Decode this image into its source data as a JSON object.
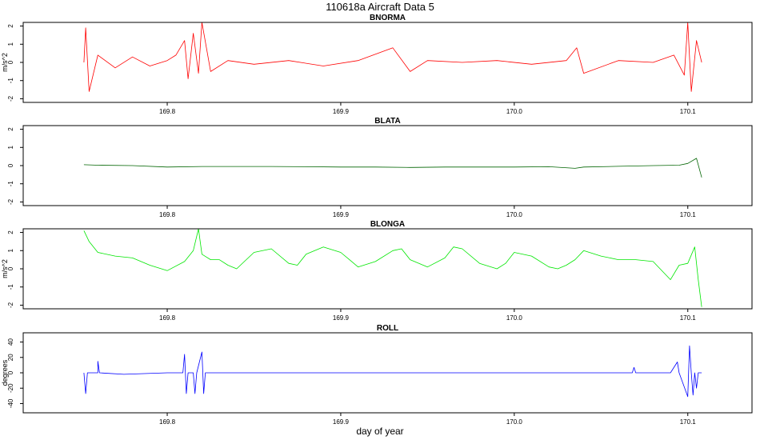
{
  "page": {
    "title": "110618a   Aircraft Data 5",
    "xlabel": "day of year"
  },
  "chart_data": [
    {
      "type": "line",
      "title": "BNORMA",
      "ylabel": "m/s^2",
      "color": "#ff0000",
      "xlim": [
        169.717,
        170.137
      ],
      "ylim": [
        -2.2,
        2.2
      ],
      "xticks": [
        169.8,
        169.9,
        170.0,
        170.1
      ],
      "xtick_labels": [
        "169.8",
        "169.9",
        "170.0",
        "170.1"
      ],
      "yticks": [
        -2,
        -1,
        0,
        1,
        2
      ],
      "ytick_labels": [
        "-2",
        "-1",
        "0",
        "1",
        "2"
      ],
      "x": [
        169.752,
        169.753,
        169.755,
        169.76,
        169.77,
        169.78,
        169.79,
        169.8,
        169.805,
        169.81,
        169.812,
        169.815,
        169.818,
        169.82,
        169.825,
        169.835,
        169.85,
        169.87,
        169.89,
        169.91,
        169.93,
        169.94,
        169.95,
        169.97,
        169.99,
        170.01,
        170.03,
        170.036,
        170.04,
        170.06,
        170.08,
        170.092,
        170.098,
        170.1,
        170.102,
        170.105,
        170.108
      ],
      "y": [
        0,
        1.9,
        -1.6,
        0.4,
        -0.3,
        0.3,
        -0.2,
        0.1,
        0.4,
        1.2,
        -0.9,
        1.6,
        -0.6,
        2.2,
        -0.5,
        0.1,
        -0.1,
        0.1,
        -0.2,
        0.1,
        0.8,
        -0.5,
        0.1,
        0,
        0.1,
        -0.1,
        0.1,
        0.8,
        -0.6,
        0.1,
        0,
        0.4,
        -0.7,
        2.2,
        -1.6,
        1.2,
        0
      ]
    },
    {
      "type": "line",
      "title": "BLATA",
      "ylabel": "",
      "color": "#006400",
      "xlim": [
        169.717,
        170.137
      ],
      "ylim": [
        -2.2,
        2.2
      ],
      "xticks": [
        169.8,
        169.9,
        170.0,
        170.1
      ],
      "xtick_labels": [
        "169.8",
        "169.9",
        "170.0",
        "170.1"
      ],
      "yticks": [
        -2,
        -1,
        0,
        1,
        2
      ],
      "ytick_labels": [
        "-2",
        "-1",
        "0",
        "1",
        "2"
      ],
      "x": [
        169.752,
        169.76,
        169.78,
        169.8,
        169.82,
        169.84,
        169.86,
        169.88,
        169.9,
        169.92,
        169.94,
        169.96,
        169.98,
        170.0,
        170.02,
        170.035,
        170.04,
        170.06,
        170.08,
        170.095,
        170.1,
        170.105,
        170.108
      ],
      "y": [
        0.05,
        0.02,
        0,
        -0.08,
        -0.05,
        -0.05,
        -0.05,
        -0.06,
        -0.08,
        -0.08,
        -0.1,
        -0.08,
        -0.08,
        -0.08,
        -0.06,
        -0.15,
        -0.08,
        -0.04,
        0,
        0.02,
        0.12,
        0.4,
        -0.65
      ]
    },
    {
      "type": "line",
      "title": "BLONGA",
      "ylabel": "m/s^2",
      "color": "#00e600",
      "xlim": [
        169.717,
        170.137
      ],
      "ylim": [
        -2.2,
        2.2
      ],
      "xticks": [
        169.8,
        169.9,
        170.0,
        170.1
      ],
      "xtick_labels": [
        "169.8",
        "169.9",
        "170.0",
        "170.1"
      ],
      "yticks": [
        -2,
        -1,
        0,
        1,
        2
      ],
      "ytick_labels": [
        "-2",
        "-1",
        "0",
        "1",
        "2"
      ],
      "x": [
        169.752,
        169.755,
        169.76,
        169.77,
        169.78,
        169.79,
        169.8,
        169.81,
        169.815,
        169.818,
        169.82,
        169.825,
        169.83,
        169.835,
        169.84,
        169.85,
        169.86,
        169.87,
        169.875,
        169.88,
        169.89,
        169.9,
        169.905,
        169.91,
        169.92,
        169.93,
        169.935,
        169.94,
        169.95,
        169.96,
        169.965,
        169.97,
        169.98,
        169.99,
        169.995,
        170.0,
        170.01,
        170.02,
        170.025,
        170.03,
        170.035,
        170.04,
        170.05,
        170.06,
        170.07,
        170.08,
        170.09,
        170.095,
        170.1,
        170.104,
        170.106,
        170.108
      ],
      "y": [
        2.1,
        1.5,
        0.9,
        0.7,
        0.6,
        0.2,
        -0.1,
        0.4,
        1.0,
        2.2,
        0.8,
        0.5,
        0.5,
        0.2,
        0.0,
        0.9,
        1.1,
        0.3,
        0.2,
        0.8,
        1.2,
        0.9,
        0.5,
        0.1,
        0.4,
        1.0,
        1.1,
        0.5,
        0.1,
        0.6,
        1.2,
        1.1,
        0.3,
        0.0,
        0.3,
        0.9,
        0.7,
        0.1,
        0.0,
        0.2,
        0.5,
        1.0,
        0.7,
        0.5,
        0.5,
        0.4,
        -0.6,
        0.2,
        0.3,
        1.2,
        -0.6,
        -2.1
      ]
    },
    {
      "type": "line",
      "title": "ROLL",
      "ylabel": "degrees",
      "color": "#0000ff",
      "xlim": [
        169.717,
        170.137
      ],
      "ylim": [
        -52,
        52
      ],
      "xticks": [
        169.8,
        169.9,
        170.0,
        170.1
      ],
      "xtick_labels": [
        "169.8",
        "169.9",
        "170.0",
        "170.1"
      ],
      "yticks": [
        -40,
        -20,
        0,
        20,
        40
      ],
      "ytick_labels": [
        "-40",
        "-20",
        "0",
        "20",
        "40"
      ],
      "x": [
        169.752,
        169.753,
        169.754,
        169.755,
        169.76,
        169.76,
        169.761,
        169.775,
        169.8,
        169.809,
        169.81,
        169.811,
        169.812,
        169.815,
        169.816,
        169.817,
        169.82,
        169.821,
        169.822,
        169.823,
        169.83,
        169.9,
        170.0,
        170.068,
        170.069,
        170.07,
        170.09,
        170.094,
        170.095,
        170.1,
        170.101,
        170.102,
        170.103,
        170.104,
        170.105,
        170.106,
        170.108
      ],
      "y": [
        0,
        -27,
        0,
        0,
        0,
        15,
        0,
        -2,
        0,
        0,
        24,
        -27,
        0,
        0,
        -27,
        0,
        27,
        -27,
        0,
        0,
        0,
        0,
        0,
        0,
        7,
        0,
        0,
        14,
        0,
        -31,
        35,
        0,
        -29,
        0,
        -20,
        0,
        0
      ]
    }
  ]
}
